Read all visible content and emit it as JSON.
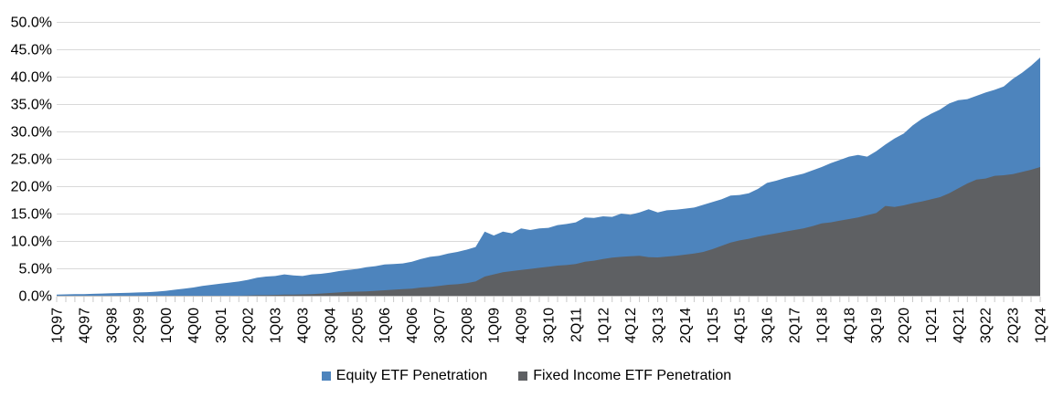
{
  "legend": {
    "items": [
      {
        "label": "Equity ETF Penetration",
        "color": "#4d84bd"
      },
      {
        "label": "Fixed Income ETF Penetration",
        "color": "#5e6063"
      }
    ]
  },
  "chart_data": {
    "type": "area",
    "stacked": false,
    "title": "",
    "xlabel": "",
    "ylabel": "",
    "ylim": [
      0,
      50
    ],
    "y_tick_step": 5,
    "y_tick_labels": [
      "0.0%",
      "5.0%",
      "10.0%",
      "15.0%",
      "20.0%",
      "25.0%",
      "30.0%",
      "35.0%",
      "40.0%",
      "45.0%",
      "50.0%"
    ],
    "grid": true,
    "legend_position": "bottom",
    "x_tick_label_every": 3,
    "x": [
      "1Q97",
      "2Q97",
      "3Q97",
      "4Q97",
      "1Q98",
      "2Q98",
      "3Q98",
      "4Q98",
      "1Q99",
      "2Q99",
      "3Q99",
      "4Q99",
      "1Q00",
      "2Q00",
      "3Q00",
      "4Q00",
      "1Q01",
      "2Q01",
      "3Q01",
      "4Q01",
      "1Q02",
      "2Q02",
      "3Q02",
      "4Q02",
      "1Q03",
      "2Q03",
      "3Q03",
      "4Q03",
      "1Q04",
      "2Q04",
      "3Q04",
      "4Q04",
      "1Q05",
      "2Q05",
      "3Q05",
      "4Q05",
      "1Q06",
      "2Q06",
      "3Q06",
      "4Q06",
      "1Q07",
      "2Q07",
      "3Q07",
      "4Q07",
      "1Q08",
      "2Q08",
      "3Q08",
      "4Q08",
      "1Q09",
      "2Q09",
      "3Q09",
      "4Q09",
      "1Q10",
      "2Q10",
      "3Q10",
      "4Q10",
      "1Q11",
      "2Q11",
      "3Q11",
      "4Q11",
      "1Q12",
      "2Q12",
      "3Q12",
      "4Q12",
      "1Q13",
      "2Q13",
      "3Q13",
      "4Q13",
      "1Q14",
      "2Q14",
      "3Q14",
      "4Q14",
      "1Q15",
      "2Q15",
      "3Q15",
      "4Q15",
      "1Q16",
      "2Q16",
      "3Q16",
      "4Q16",
      "1Q17",
      "2Q17",
      "3Q17",
      "4Q17",
      "1Q18",
      "2Q18",
      "3Q18",
      "4Q18",
      "1Q19",
      "2Q19",
      "3Q19",
      "4Q19",
      "1Q20",
      "2Q20",
      "3Q20",
      "4Q20",
      "1Q21",
      "2Q21",
      "3Q21",
      "4Q21",
      "1Q22",
      "2Q22",
      "3Q22",
      "4Q22",
      "1Q23",
      "2Q23",
      "3Q23",
      "4Q23",
      "1Q24"
    ],
    "series": [
      {
        "name": "Equity ETF Penetration",
        "color": "#4d84bd",
        "values": [
          0.2,
          0.25,
          0.3,
          0.3,
          0.35,
          0.4,
          0.45,
          0.5,
          0.55,
          0.6,
          0.65,
          0.75,
          0.9,
          1.1,
          1.3,
          1.5,
          1.8,
          2.0,
          2.2,
          2.4,
          2.6,
          2.9,
          3.3,
          3.5,
          3.6,
          3.9,
          3.7,
          3.6,
          3.9,
          4.0,
          4.2,
          4.5,
          4.7,
          4.9,
          5.2,
          5.4,
          5.7,
          5.8,
          5.9,
          6.2,
          6.7,
          7.1,
          7.3,
          7.7,
          8.0,
          8.4,
          8.9,
          11.7,
          11.0,
          11.7,
          11.4,
          12.3,
          12.0,
          12.3,
          12.4,
          12.9,
          13.1,
          13.4,
          14.3,
          14.2,
          14.5,
          14.4,
          15.0,
          14.8,
          15.2,
          15.8,
          15.2,
          15.6,
          15.7,
          15.9,
          16.1,
          16.6,
          17.1,
          17.6,
          18.3,
          18.4,
          18.7,
          19.5,
          20.6,
          21.0,
          21.5,
          21.9,
          22.3,
          22.9,
          23.5,
          24.2,
          24.8,
          25.4,
          25.7,
          25.4,
          26.4,
          27.6,
          28.7,
          29.6,
          31.1,
          32.3,
          33.2,
          34.0,
          35.1,
          35.7,
          35.9,
          36.5,
          37.1,
          37.6,
          38.2,
          39.6,
          40.7,
          42.0,
          43.5
        ]
      },
      {
        "name": "Fixed Income ETF Penetration",
        "color": "#5e6063",
        "values": [
          0,
          0,
          0,
          0,
          0,
          0,
          0,
          0,
          0,
          0,
          0,
          0,
          0,
          0,
          0,
          0,
          0,
          0,
          0,
          0,
          0.0,
          0.05,
          0.1,
          0.1,
          0.15,
          0.2,
          0.2,
          0.25,
          0.3,
          0.4,
          0.5,
          0.6,
          0.7,
          0.75,
          0.8,
          0.9,
          1.0,
          1.1,
          1.2,
          1.3,
          1.5,
          1.6,
          1.8,
          2.0,
          2.1,
          2.3,
          2.6,
          3.5,
          3.9,
          4.3,
          4.5,
          4.7,
          4.9,
          5.1,
          5.3,
          5.5,
          5.6,
          5.8,
          6.2,
          6.4,
          6.7,
          6.95,
          7.1,
          7.2,
          7.3,
          7.05,
          7.0,
          7.15,
          7.3,
          7.5,
          7.7,
          8.0,
          8.5,
          9.1,
          9.7,
          10.1,
          10.4,
          10.8,
          11.1,
          11.4,
          11.7,
          12.0,
          12.3,
          12.7,
          13.2,
          13.4,
          13.7,
          14.0,
          14.3,
          14.7,
          15.1,
          16.4,
          16.2,
          16.5,
          16.9,
          17.2,
          17.6,
          18.0,
          18.7,
          19.6,
          20.5,
          21.2,
          21.4,
          21.9,
          22.0,
          22.2,
          22.6,
          23.0,
          23.5
        ]
      }
    ]
  }
}
